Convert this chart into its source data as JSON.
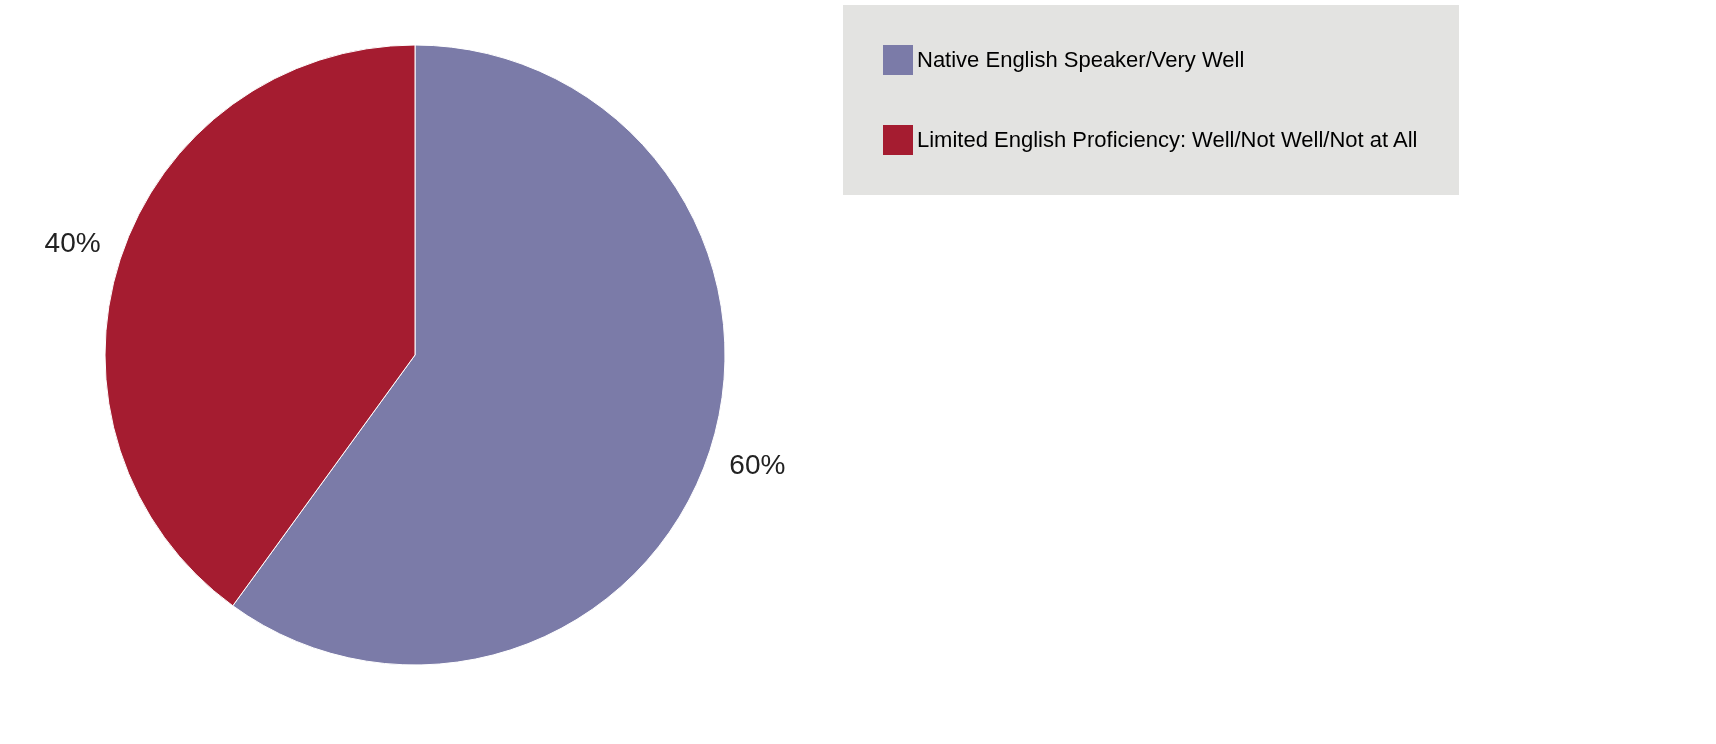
{
  "chart_data": {
    "type": "pie",
    "categories": [
      "Native English Speaker/Very Well",
      "Limited English Proficiency: Well/Not Well/Not at All"
    ],
    "values": [
      60,
      40
    ],
    "colors": [
      "#7b7ba8",
      "#a51c30"
    ],
    "value_labels": [
      "60%",
      "40%"
    ],
    "legend": "right"
  }
}
